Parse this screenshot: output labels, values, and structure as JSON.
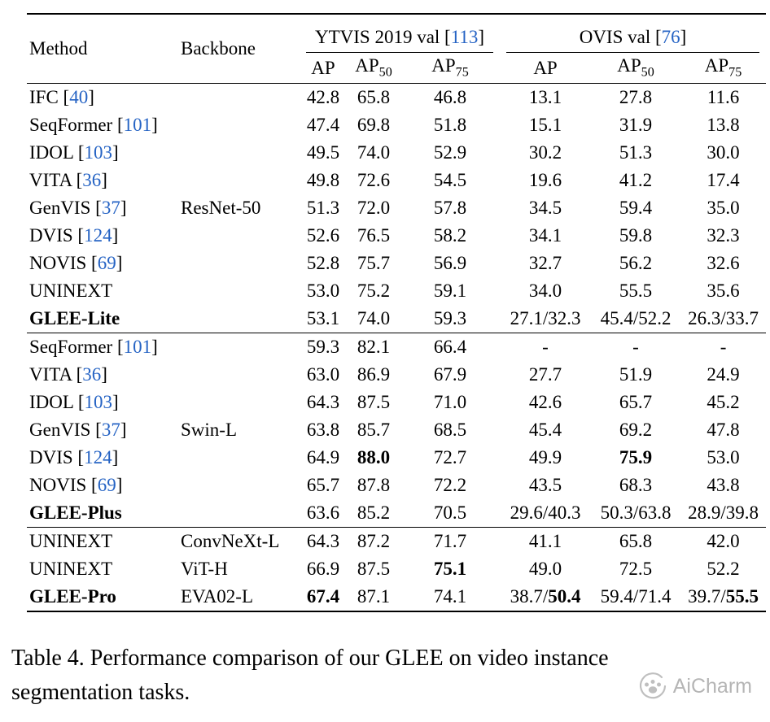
{
  "page": {
    "background": "#ffffff",
    "text_color": "#000000",
    "cite_color": "#2563c4",
    "watermark_color": "#b5b5b5"
  },
  "table": {
    "header": {
      "method": "Method",
      "backbone": "Backbone",
      "col_groups": [
        {
          "label": "YTVIS 2019 val",
          "cite": "113"
        },
        {
          "label": "OVIS val",
          "cite": "76"
        }
      ],
      "metrics": [
        {
          "base": "AP",
          "sub": ""
        },
        {
          "base": "AP",
          "sub": "50"
        },
        {
          "base": "AP",
          "sub": "75"
        },
        {
          "base": "AP",
          "sub": ""
        },
        {
          "base": "AP",
          "sub": "50"
        },
        {
          "base": "AP",
          "sub": "75"
        }
      ]
    },
    "groups": [
      {
        "rows": [
          {
            "method": "IFC",
            "cite": "40",
            "bold": false,
            "backbone": "",
            "values": [
              "42.8",
              "65.8",
              "46.8",
              "13.1",
              "27.8",
              "11.6"
            ]
          },
          {
            "method": "SeqFormer",
            "cite": "101",
            "bold": false,
            "backbone": "",
            "values": [
              "47.4",
              "69.8",
              "51.8",
              "15.1",
              "31.9",
              "13.8"
            ]
          },
          {
            "method": "IDOL",
            "cite": "103",
            "bold": false,
            "backbone": "",
            "values": [
              "49.5",
              "74.0",
              "52.9",
              "30.2",
              "51.3",
              "30.0"
            ]
          },
          {
            "method": "VITA",
            "cite": "36",
            "bold": false,
            "backbone": "",
            "values": [
              "49.8",
              "72.6",
              "54.5",
              "19.6",
              "41.2",
              "17.4"
            ]
          },
          {
            "method": "GenVIS",
            "cite": "37",
            "bold": false,
            "backbone": "ResNet-50",
            "values": [
              "51.3",
              "72.0",
              "57.8",
              "34.5",
              "59.4",
              "35.0"
            ]
          },
          {
            "method": "DVIS",
            "cite": "124",
            "bold": false,
            "backbone": "",
            "values": [
              "52.6",
              "76.5",
              "58.2",
              "34.1",
              "59.8",
              "32.3"
            ]
          },
          {
            "method": "NOVIS",
            "cite": "69",
            "bold": false,
            "backbone": "",
            "values": [
              "52.8",
              "75.7",
              "56.9",
              "32.7",
              "56.2",
              "32.6"
            ]
          },
          {
            "method": "UNINEXT",
            "cite": "",
            "bold": false,
            "backbone": "",
            "values": [
              "53.0",
              "75.2",
              "59.1",
              "34.0",
              "55.5",
              "35.6"
            ]
          },
          {
            "method": "GLEE-Lite",
            "cite": "",
            "bold": true,
            "backbone": "",
            "values": [
              "53.1",
              "74.0",
              "59.3",
              "27.1/32.3",
              "45.4/52.2",
              "26.3/33.7"
            ]
          }
        ]
      },
      {
        "rows": [
          {
            "method": "SeqFormer",
            "cite": "101",
            "bold": false,
            "backbone": "",
            "values": [
              "59.3",
              "82.1",
              "66.4",
              "-",
              "-",
              "-"
            ]
          },
          {
            "method": "VITA",
            "cite": "36",
            "bold": false,
            "backbone": "",
            "values": [
              "63.0",
              "86.9",
              "67.9",
              "27.7",
              "51.9",
              "24.9"
            ]
          },
          {
            "method": "IDOL",
            "cite": "103",
            "bold": false,
            "backbone": "",
            "values": [
              "64.3",
              "87.5",
              "71.0",
              "42.6",
              "65.7",
              "45.2"
            ]
          },
          {
            "method": "GenVIS",
            "cite": "37",
            "bold": false,
            "backbone": "Swin-L",
            "values": [
              "63.8",
              "85.7",
              "68.5",
              "45.4",
              "69.2",
              "47.8"
            ]
          },
          {
            "method": "DVIS",
            "cite": "124",
            "bold": false,
            "backbone": "",
            "values": [
              "64.9",
              "**88.0**",
              "72.7",
              "49.9",
              "**75.9**",
              "53.0"
            ]
          },
          {
            "method": "NOVIS",
            "cite": "69",
            "bold": false,
            "backbone": "",
            "values": [
              "65.7",
              "87.8",
              "72.2",
              "43.5",
              "68.3",
              "43.8"
            ]
          },
          {
            "method": "GLEE-Plus",
            "cite": "",
            "bold": true,
            "backbone": "",
            "values": [
              "63.6",
              "85.2",
              "70.5",
              "29.6/40.3",
              "50.3/63.8",
              "28.9/39.8"
            ]
          }
        ]
      },
      {
        "rows": [
          {
            "method": "UNINEXT",
            "cite": "",
            "bold": false,
            "backbone": "ConvNeXt-L",
            "values": [
              "64.3",
              "87.2",
              "71.7",
              "41.1",
              "65.8",
              "42.0"
            ]
          },
          {
            "method": "UNINEXT",
            "cite": "",
            "bold": false,
            "backbone": "ViT-H",
            "values": [
              "66.9",
              "87.5",
              "**75.1**",
              "49.0",
              "72.5",
              "52.2"
            ]
          },
          {
            "method": "GLEE-Pro",
            "cite": "",
            "bold": true,
            "backbone": "EVA02-L",
            "values": [
              "**67.4**",
              "87.1",
              "74.1",
              "38.7/**50.4**",
              "59.4/71.4",
              "39.7/**55.5**"
            ]
          }
        ]
      }
    ]
  },
  "caption": {
    "lines": [
      "Table 4. Performance comparison of our GLEE on video instance",
      "segmentation tasks."
    ]
  },
  "watermark": {
    "text": "AiCharm"
  }
}
